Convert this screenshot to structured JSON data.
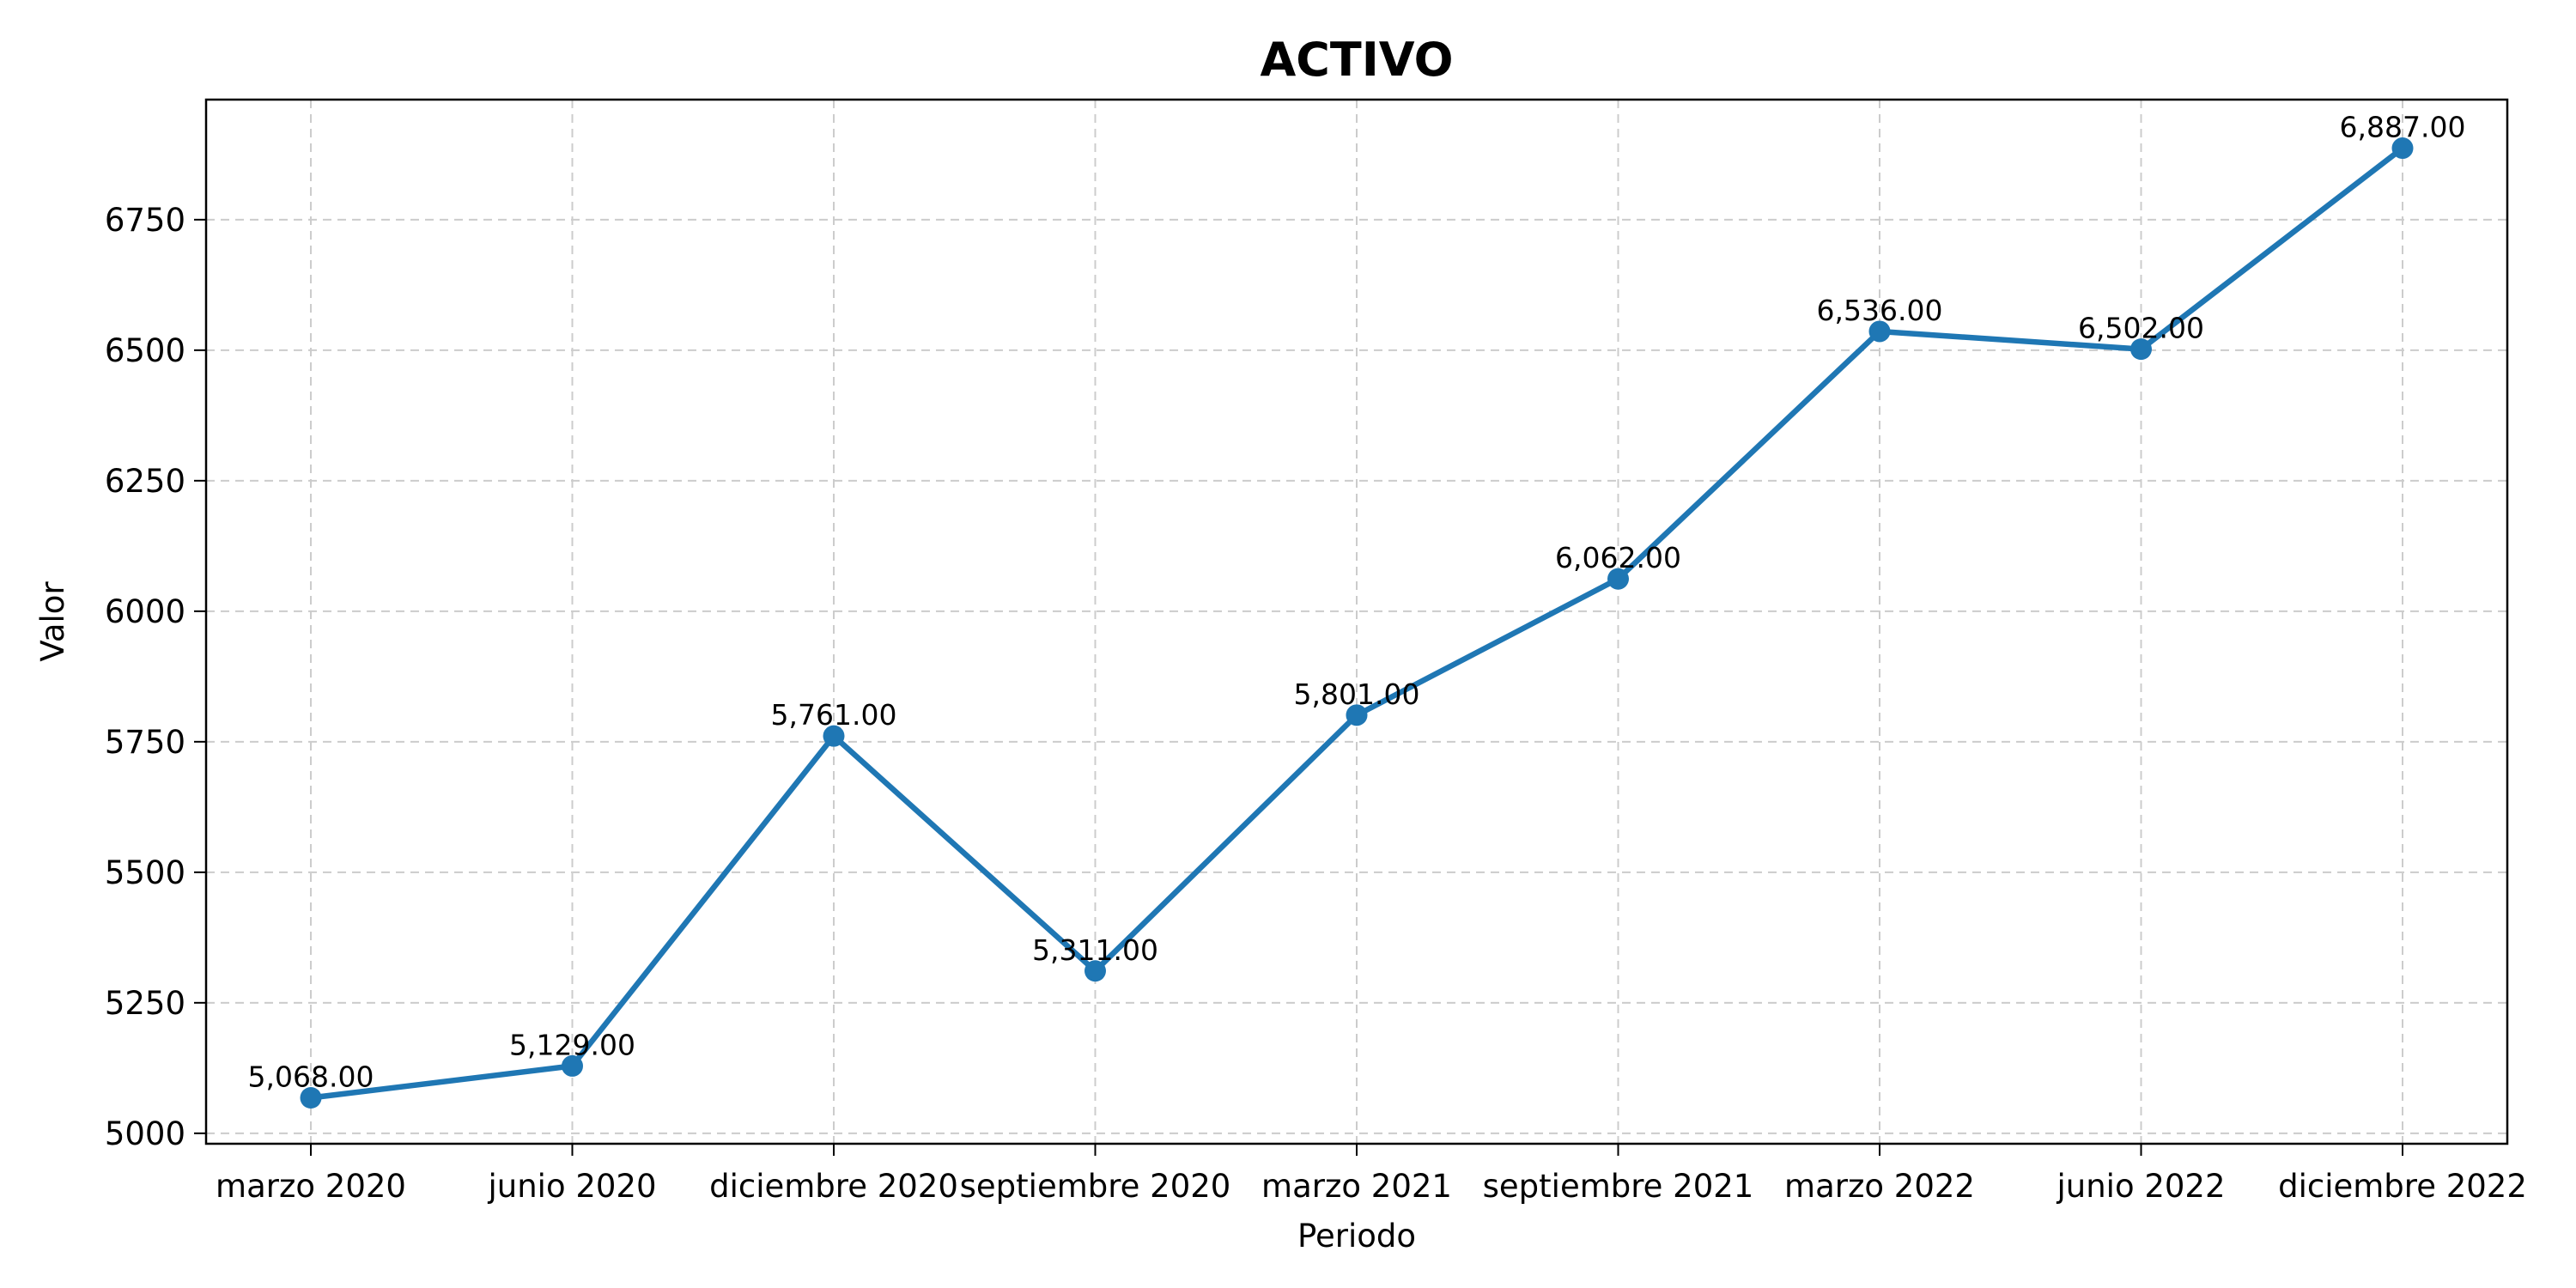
{
  "chart_data": {
    "type": "line",
    "title": "ACTIVO",
    "xlabel": "Periodo",
    "ylabel": "Valor",
    "categories": [
      "marzo 2020",
      "junio 2020",
      "diciembre 2020",
      "septiembre 2020",
      "marzo 2021",
      "septiembre 2021",
      "marzo 2022",
      "junio 2022",
      "diciembre 2022"
    ],
    "series": [
      {
        "values": [
          5068,
          5129,
          5761,
          5311,
          5801,
          6062,
          6536,
          6502,
          6887
        ],
        "labels": [
          "5,068.00",
          "5,129.00",
          "5,761.00",
          "5,311.00",
          "5,801.00",
          "6,062.00",
          "6,536.00",
          "6,502.00",
          "6,887.00"
        ]
      }
    ],
    "ylim": [
      4980,
      6980
    ],
    "yticks": [
      5000,
      5250,
      5500,
      5750,
      6000,
      6250,
      6500,
      6750
    ],
    "ytick_labels": [
      "5000",
      "5250",
      "5500",
      "5750",
      "6000",
      "6250",
      "6500",
      "6750"
    ],
    "grid": true,
    "line_color": "#1f77b4"
  }
}
